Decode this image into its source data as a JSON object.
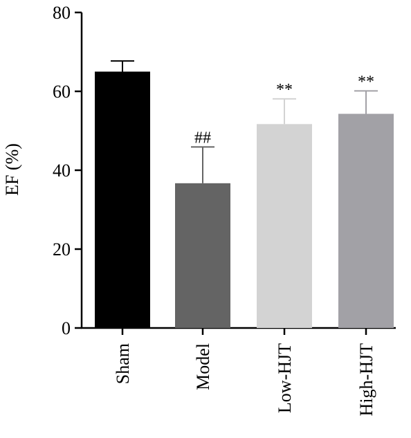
{
  "chart_data": {
    "type": "bar",
    "title": "",
    "xlabel": "",
    "ylabel": "EF (%)",
    "ylim": [
      0,
      80
    ],
    "yticks": [
      0,
      20,
      40,
      60,
      80
    ],
    "grid": false,
    "categories": [
      "Sham",
      "Model",
      "Low-HJT",
      "High-HJT"
    ],
    "values": [
      65,
      36.7,
      51.7,
      54.3
    ],
    "error_upper": [
      67.7,
      45.9,
      58.1,
      60.1
    ],
    "annotations": [
      "",
      "##",
      "**",
      "**"
    ],
    "bar_colors": [
      "#000000",
      "#646464",
      "#d3d3d3",
      "#a2a1a6"
    ]
  }
}
